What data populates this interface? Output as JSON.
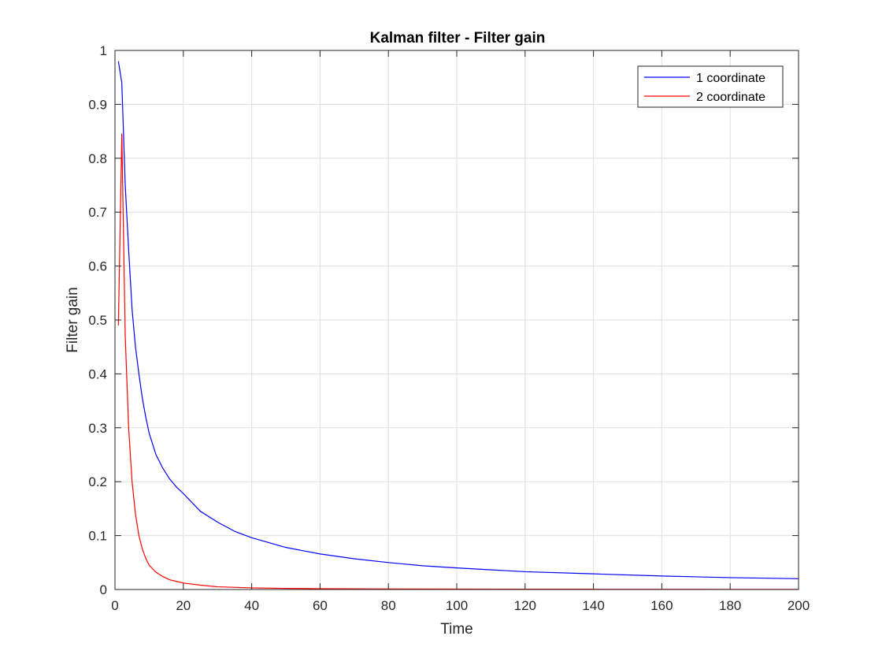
{
  "chart_data": {
    "type": "line",
    "title": "Kalman filter - Filter gain",
    "xlabel": "Time",
    "ylabel": "Filter gain",
    "xlim": [
      0,
      200
    ],
    "ylim": [
      0,
      1
    ],
    "xticks": [
      0,
      20,
      40,
      60,
      80,
      100,
      120,
      140,
      160,
      180,
      200
    ],
    "xtick_labels": [
      "0",
      "20",
      "40",
      "60",
      "80",
      "100",
      "120",
      "140",
      "160",
      "180",
      "200"
    ],
    "yticks": [
      0,
      0.1,
      0.2,
      0.3,
      0.4,
      0.5,
      0.6,
      0.7,
      0.8,
      0.9,
      1
    ],
    "ytick_labels": [
      "0",
      "0.1",
      "0.2",
      "0.3",
      "0.4",
      "0.5",
      "0.6",
      "0.7",
      "0.8",
      "0.9",
      "1"
    ],
    "grid": true,
    "box": true,
    "legend_location": "top-right",
    "series": [
      {
        "name": "1 coordinate",
        "color": "#0000ff",
        "x": [
          1,
          2,
          3,
          4,
          5,
          6,
          7,
          8,
          9,
          10,
          12,
          14,
          16,
          18,
          20,
          25,
          30,
          35,
          40,
          50,
          60,
          70,
          80,
          90,
          100,
          120,
          140,
          160,
          180,
          200
        ],
        "y": [
          0.98,
          0.94,
          0.75,
          0.63,
          0.52,
          0.45,
          0.4,
          0.355,
          0.32,
          0.29,
          0.25,
          0.225,
          0.205,
          0.19,
          0.178,
          0.145,
          0.125,
          0.108,
          0.096,
          0.078,
          0.066,
          0.057,
          0.05,
          0.044,
          0.04,
          0.033,
          0.029,
          0.025,
          0.022,
          0.02
        ]
      },
      {
        "name": "2 coordinate",
        "color": "#ff0000",
        "x": [
          1,
          2,
          3,
          4,
          5,
          6,
          7,
          8,
          9,
          10,
          12,
          14,
          16,
          18,
          20,
          25,
          30,
          40,
          50,
          60,
          80,
          100,
          120,
          140,
          160,
          180,
          200
        ],
        "y": [
          0.49,
          0.845,
          0.47,
          0.3,
          0.2,
          0.14,
          0.1,
          0.075,
          0.058,
          0.045,
          0.032,
          0.024,
          0.018,
          0.015,
          0.012,
          0.008,
          0.005,
          0.003,
          0.002,
          0.0015,
          0.001,
          0.0008,
          0.0006,
          0.0005,
          0.0004,
          0.0003,
          0.0003
        ]
      }
    ]
  }
}
